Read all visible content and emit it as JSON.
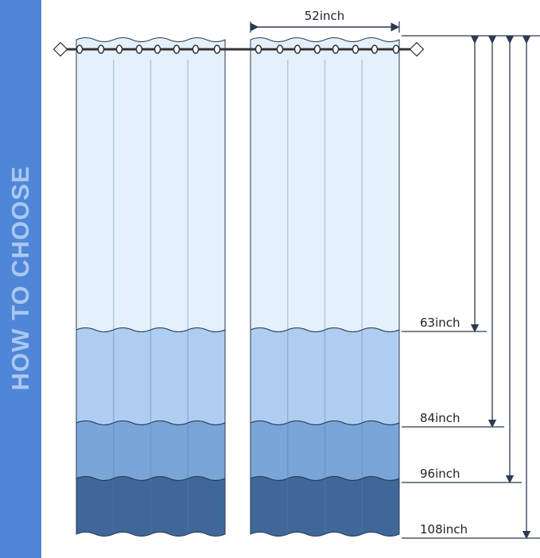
{
  "sidebar": {
    "title": "HOW TO CHOOSE"
  },
  "width_label": "52inch",
  "length_labels": [
    "63inch",
    "84inch",
    "96inch",
    "108inch"
  ],
  "colors": {
    "sidebar": "#4f86d8",
    "band_top": "#e4f1fc",
    "band_2": "#aecdf1",
    "band_3": "#79a5d9",
    "band_4": "#3f6799",
    "outline": "#2b3a52"
  }
}
